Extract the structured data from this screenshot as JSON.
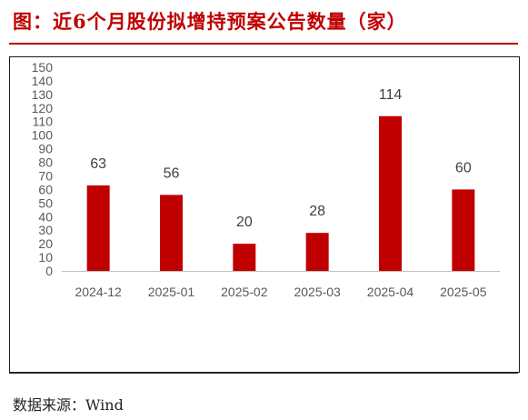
{
  "title": "图：近6个月股份拟增持预案公告数量（家）",
  "source": "数据来源：Wind",
  "colors": {
    "bar": "#c00000",
    "title": "#c00000",
    "axis": "#bfbfbf"
  },
  "chart_data": {
    "type": "bar",
    "categories": [
      "2024-12",
      "2025-01",
      "2025-02",
      "2025-03",
      "2025-04",
      "2025-05"
    ],
    "values": [
      63,
      56,
      20,
      28,
      114,
      60
    ],
    "data_labels": [
      "63",
      "56",
      "20",
      "28",
      "114",
      "60"
    ],
    "ylim": [
      0,
      150
    ],
    "yticks": [
      0,
      10,
      20,
      30,
      40,
      50,
      60,
      70,
      80,
      90,
      100,
      110,
      120,
      130,
      140,
      150
    ],
    "grid": false,
    "legend": "none"
  }
}
